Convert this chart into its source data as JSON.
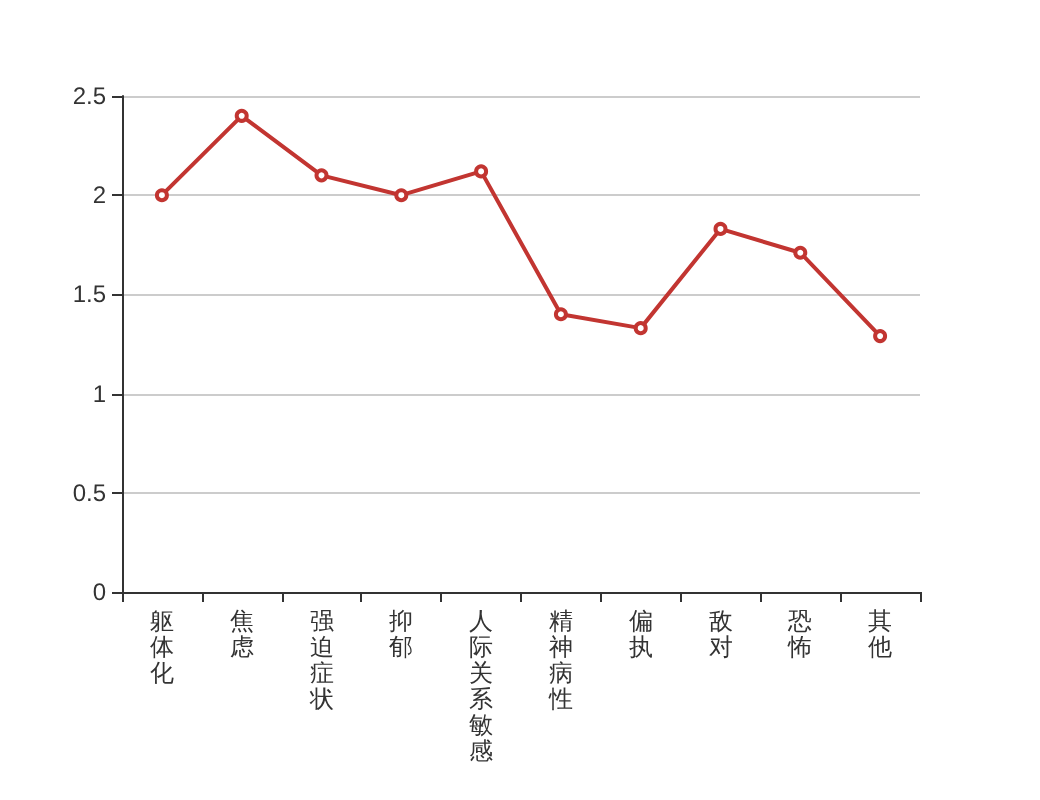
{
  "chart_data": {
    "type": "line",
    "categories": [
      "躯体化",
      "焦虑",
      "强迫症状",
      "抑郁",
      "人际关系敏感",
      "精神病性",
      "偏执",
      "敌对",
      "恐怖",
      "其他"
    ],
    "series": [
      {
        "color": "#c23531",
        "values": [
          2.0,
          2.4,
          2.1,
          2.0,
          2.12,
          1.4,
          1.33,
          1.83,
          1.71,
          1.29
        ]
      }
    ],
    "ylim": [
      0,
      2.5
    ],
    "yticks": [
      0,
      0.5,
      1,
      1.5,
      2,
      2.5
    ],
    "grid": "y",
    "marker": "circle",
    "line_style": "solid"
  }
}
